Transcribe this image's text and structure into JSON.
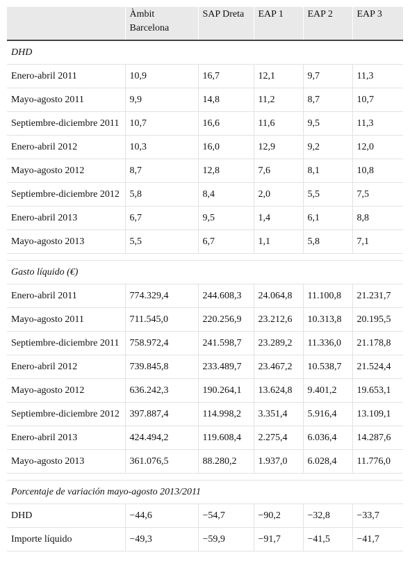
{
  "table": {
    "columns": [
      "",
      "Àmbit Barcelona",
      "SAP Dreta",
      "EAP 1",
      "EAP 2",
      "EAP 3"
    ],
    "sections": [
      {
        "title": "DHD",
        "rows": [
          {
            "label": "Enero-abril 2011",
            "values": [
              "10,9",
              "16,7",
              "12,1",
              "9,7",
              "11,3"
            ]
          },
          {
            "label": "Mayo-agosto 2011",
            "values": [
              "9,9",
              "14,8",
              "11,2",
              "8,7",
              "10,7"
            ]
          },
          {
            "label": "Septiembre-diciembre 2011",
            "values": [
              "10,7",
              "16,6",
              "11,6",
              "9,5",
              "11,3"
            ]
          },
          {
            "label": "Enero-abril 2012",
            "values": [
              "10,3",
              "16,0",
              "12,9",
              "9,2",
              "12,0"
            ]
          },
          {
            "label": "Mayo-agosto 2012",
            "values": [
              "8,7",
              "12,8",
              "7,6",
              "8,1",
              "10,8"
            ]
          },
          {
            "label": "Septiembre-diciembre 2012",
            "values": [
              "5,8",
              "8,4",
              "2,0",
              "5,5",
              "7,5"
            ]
          },
          {
            "label": "Enero-abril 2013",
            "values": [
              "6,7",
              "9,5",
              "1,4",
              "6,1",
              "8,8"
            ]
          },
          {
            "label": "Mayo-agosto 2013",
            "values": [
              "5,5",
              "6,7",
              "1,1",
              "5,8",
              "7,1"
            ]
          }
        ]
      },
      {
        "title": "Gasto líquido (€)",
        "rows": [
          {
            "label": "Enero-abril 2011",
            "values": [
              "774.329,4",
              "244.608,3",
              "24.064,8",
              "11.100,8",
              "21.231,7"
            ]
          },
          {
            "label": "Mayo-agosto 2011",
            "values": [
              "711.545,0",
              "220.256,9",
              "23.212,6",
              "10.313,8",
              "20.195,5"
            ]
          },
          {
            "label": "Septiembre-diciembre 2011",
            "values": [
              "758.972,4",
              "241.598,7",
              "23.289,2",
              "11.336,0",
              "21.178,8"
            ]
          },
          {
            "label": "Enero-abril 2012",
            "values": [
              "739.845,8",
              "233.489,7",
              "23.467,2",
              "10.538,7",
              "21.524,4"
            ]
          },
          {
            "label": "Mayo-agosto 2012",
            "values": [
              "636.242,3",
              "190.264,1",
              "13.624,8",
              "9.401,2",
              "19.653,1"
            ]
          },
          {
            "label": "Septiembre-diciembre 2012",
            "values": [
              "397.887,4",
              "114.998,2",
              "3.351,4",
              "5.916,4",
              "13.109,1"
            ]
          },
          {
            "label": "Enero-abril 2013",
            "values": [
              "424.494,2",
              "119.608,4",
              "2.275,4",
              "6.036,4",
              "14.287,6"
            ]
          },
          {
            "label": "Mayo-agosto 2013",
            "values": [
              "361.076,5",
              "88.280,2",
              "1.937,0",
              "6.028,4",
              "11.776,0"
            ]
          }
        ]
      },
      {
        "title": "Porcentaje de variación mayo-agosto 2013/2011",
        "rows": [
          {
            "label": "DHD",
            "values": [
              "−44,6",
              "−54,7",
              "−90,2",
              "−32,8",
              "−33,7"
            ]
          },
          {
            "label": "Importe líquido",
            "values": [
              "−49,3",
              "−59,9",
              "−91,7",
              "−41,5",
              "−41,7"
            ]
          }
        ]
      }
    ]
  }
}
